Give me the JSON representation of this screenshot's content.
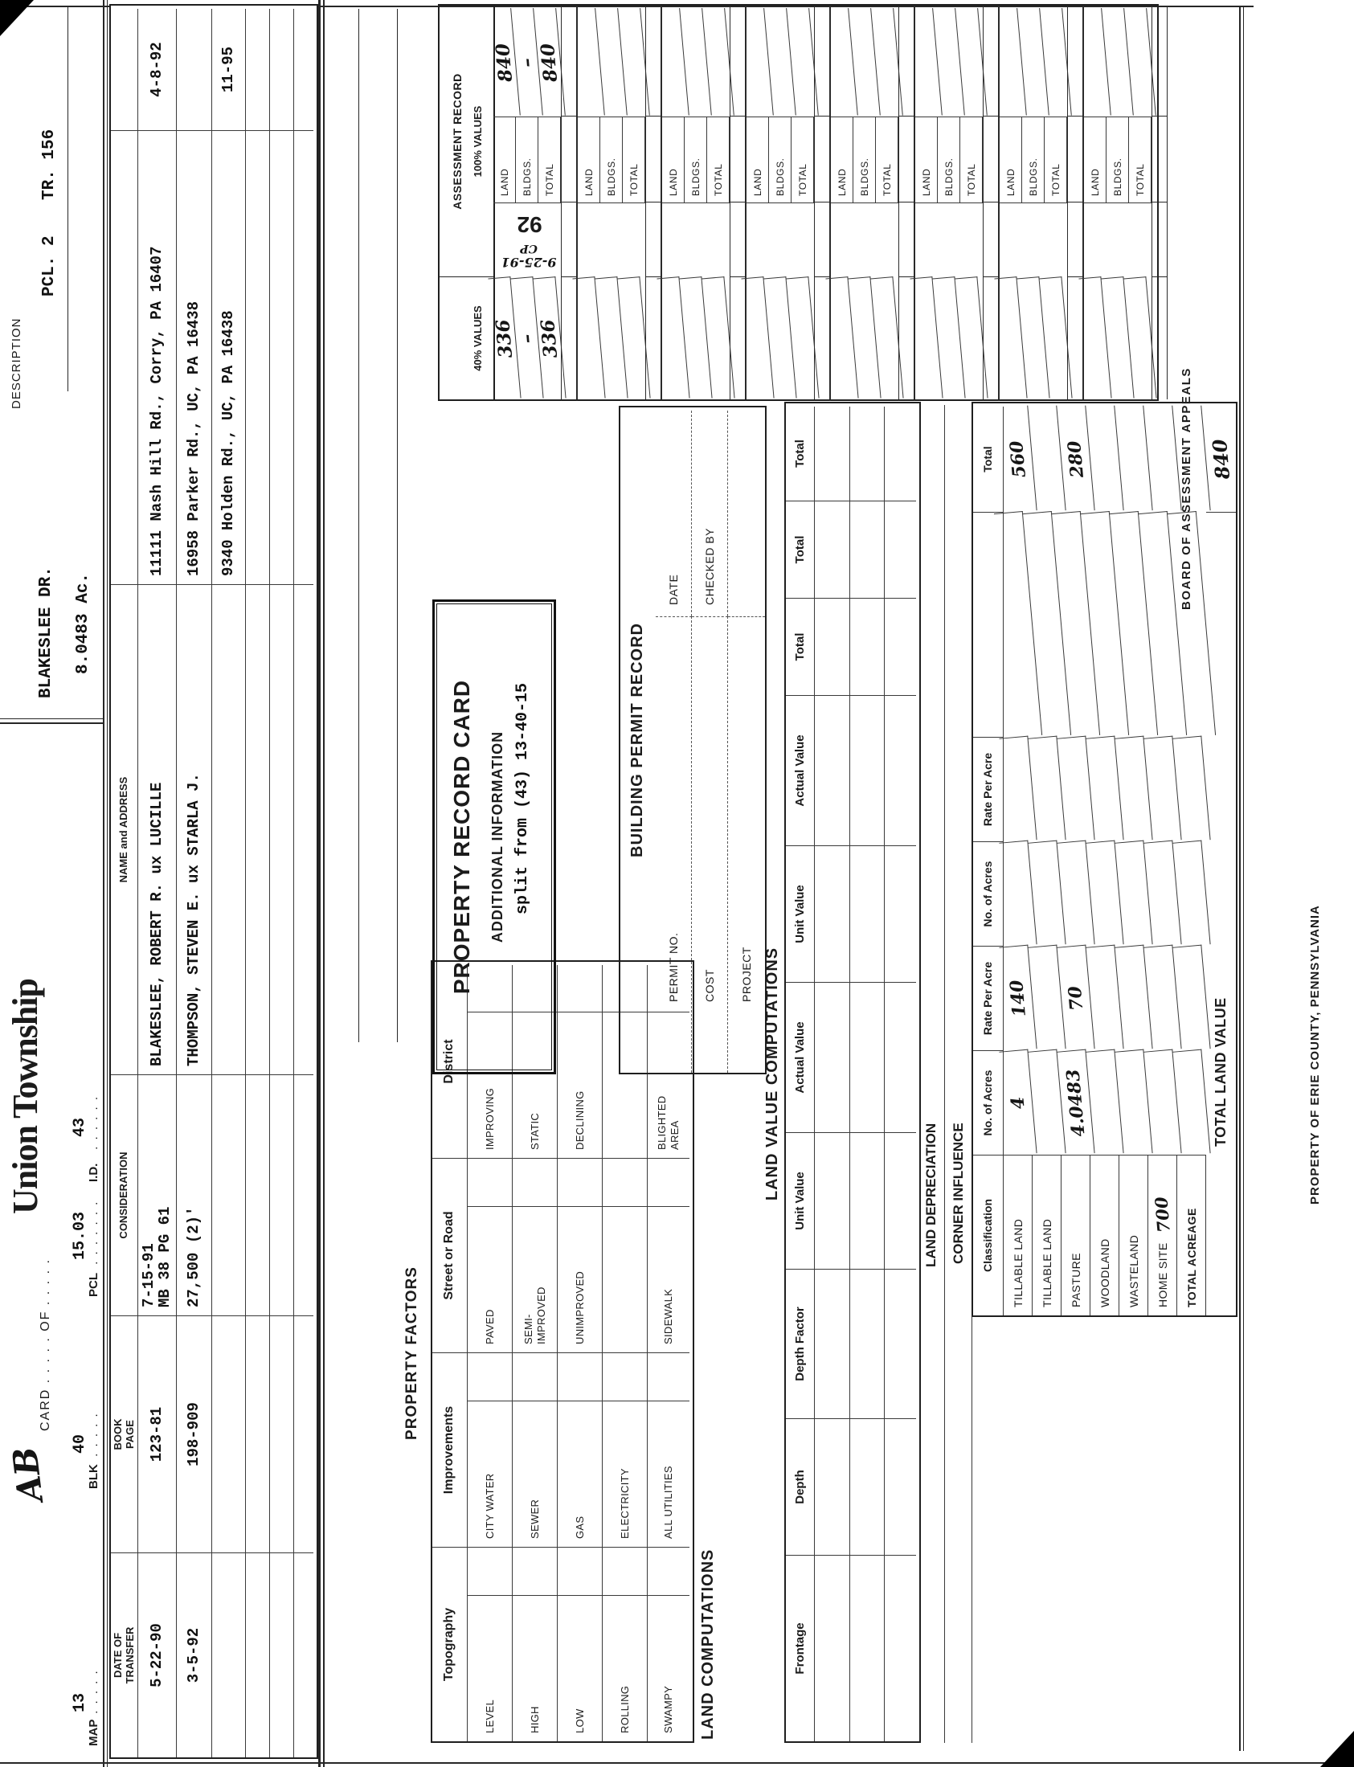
{
  "header": {
    "card_no_hand": "AB",
    "card_of": "CARD . . . . .  OF . . . . .",
    "township": "Union Township",
    "fields": [
      {
        "label": "MAP",
        "dots": " . . . . .",
        "value": "13"
      },
      {
        "label": "BLK",
        "dots": " . . . . .",
        "value": "40"
      },
      {
        "label": "PCL",
        "dots": " . . . . . . .",
        "value": "15.03"
      },
      {
        "label": "I.D.",
        "dots": " . . . . . .",
        "value": "43"
      }
    ]
  },
  "description": {
    "label": "DESCRIPTION",
    "street": "BLAKESLEE DR.",
    "pcl": "PCL. 2",
    "tr": "TR. 156",
    "acreage": "8.0483 Ac."
  },
  "transfer": {
    "headers": [
      "DATE OF\nTRANSFER",
      "BOOK\nPAGE",
      "CONSIDERATION",
      "NAME and ADDRESS",
      "",
      ""
    ],
    "rows": [
      [
        "5-22-90",
        "123-81",
        "7-15-91\nMB 38 PG 61",
        "BLAKESLEE, ROBERT R. ux LUCILLE",
        "11111 Nash Hill Rd., Corry, PA  16407",
        "4-8-92"
      ],
      [
        "3-5-92",
        "198-909",
        "27,500 (2)'",
        "THOMPSON, STEVEN E. ux STARLA J.",
        "16958 Parker Rd., UC, PA 16438",
        ""
      ],
      [
        "",
        "",
        "",
        "",
        "9340 Holden Rd., UC, PA 16438",
        "11-95"
      ],
      [
        "",
        "",
        "",
        "",
        "",
        ""
      ],
      [
        "",
        "",
        "",
        "",
        "",
        ""
      ],
      [
        "",
        "",
        "",
        "",
        "",
        ""
      ]
    ]
  },
  "factors": {
    "title": "PROPERTY FACTORS",
    "columns": [
      {
        "header": "Topography",
        "items": [
          "LEVEL",
          "HIGH",
          "LOW",
          "ROLLING",
          "SWAMPY"
        ]
      },
      {
        "header": "Improvements",
        "items": [
          "CITY WATER",
          "SEWER",
          "GAS",
          "ELECTRICITY",
          "ALL UTILITIES"
        ]
      },
      {
        "header": "Street or Road",
        "items": [
          "PAVED",
          "SEMI-\nIMPROVED",
          "UNIMPROVED",
          "",
          "SIDEWALK"
        ]
      },
      {
        "header": "District",
        "items": [
          "IMPROVING",
          "STATIC",
          "DECLINING",
          "",
          "BLIGHTED\nAREA"
        ]
      }
    ]
  },
  "land_computations": "LAND COMPUTATIONS",
  "prc": {
    "title": "PROPERTY RECORD CARD",
    "additional": "ADDITIONAL INFORMATION",
    "split_note": "split from (43) 13-40-15"
  },
  "permit": {
    "title": "BUILDING PERMIT RECORD",
    "rows": [
      [
        "PERMIT NO.",
        "DATE"
      ],
      [
        "COST",
        "CHECKED BY"
      ],
      [
        "PROJECT",
        ""
      ]
    ]
  },
  "assessment": {
    "title": "ASSESSMENT RECORD",
    "col100": "100% VALUES",
    "col40": "40% VALUES",
    "row_labels": [
      "LAND",
      "BLDGS.",
      "TOTAL"
    ],
    "groups": [
      {
        "v40": [
          "336",
          "–",
          "336"
        ],
        "v100": [
          "840",
          "–",
          "840"
        ],
        "stamp": "92",
        "note": "9-25-91",
        "note2": "CP"
      },
      {},
      {},
      {},
      {},
      {},
      {},
      {}
    ]
  },
  "lvc": {
    "title": "LAND VALUE COMPUTATIONS",
    "headers": [
      "Frontage",
      "Depth",
      "Depth Factor",
      "Unit Value",
      "Actual Value",
      "Unit Value",
      "Actual Value",
      "Total",
      "Total",
      "Total"
    ]
  },
  "depreciation": {
    "land": "LAND DEPRECIATION",
    "corner": "CORNER INFLUENCE"
  },
  "classification": {
    "headers": [
      "Classification",
      "No. of Acres",
      "Rate Per Acre",
      "No. of Acres",
      "Rate Per Acre",
      "",
      "Total"
    ],
    "rows": [
      {
        "cells": [
          "TILLABLE LAND",
          "4",
          "140",
          "",
          "",
          "",
          "560"
        ]
      },
      {
        "cells": [
          "TILLABLE LAND",
          "",
          "",
          "",
          "",
          "",
          ""
        ]
      },
      {
        "cells": [
          "PASTURE",
          "4.0483",
          "70",
          "",
          "",
          "",
          "280"
        ]
      },
      {
        "cells": [
          "WOODLAND",
          "",
          "",
          "",
          "",
          "",
          ""
        ]
      },
      {
        "cells": [
          "WASTELAND",
          "",
          "",
          "",
          "",
          "",
          ""
        ]
      },
      {
        "cells": [
          "HOME SITE",
          "",
          "",
          "",
          "",
          "",
          ""
        ],
        "note": "700"
      },
      {
        "cells": [
          "TOTAL ACREAGE",
          "",
          "",
          "",
          "",
          "",
          ""
        ],
        "bold": true
      }
    ],
    "total_label": "TOTAL LAND VALUE",
    "total_value": "840"
  },
  "footer": {
    "board": "BOARD OF ASSESSMENT APPEALS",
    "property_of": "PROPERTY OF ERIE COUNTY, PENNSYLVANIA"
  }
}
